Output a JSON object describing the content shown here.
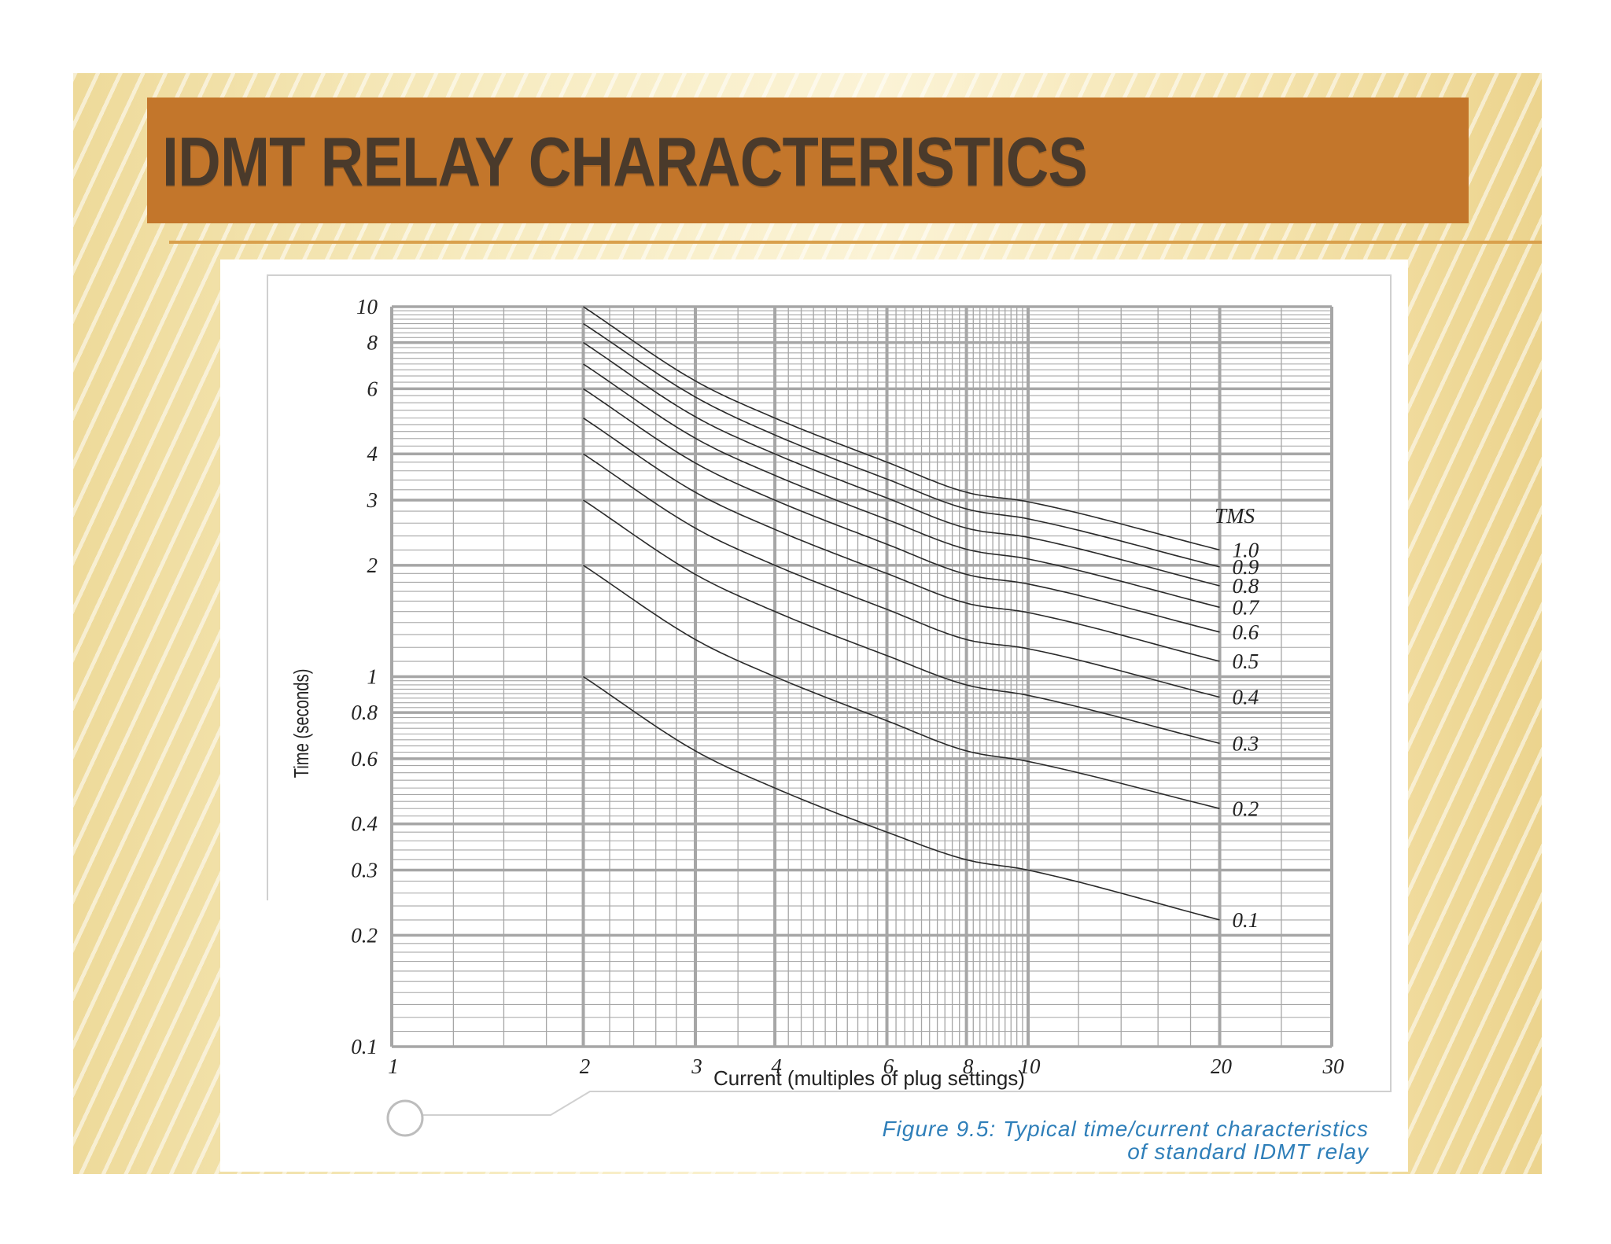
{
  "slide": {
    "title": "IDMT RELAY CHARACTERISTICS"
  },
  "colors": {
    "title_bar": "#c3762b",
    "title_text": "#4a3a2b",
    "caption": "#2f7fb9",
    "grid": "#a6a6a6",
    "curve": "#2a2a2a"
  },
  "caption": {
    "line1": "Figure 9.5:  Typical time/current characteristics",
    "line2": "of standard IDMT relay"
  },
  "chart_data": {
    "type": "line",
    "x_scale": "log",
    "y_scale": "log",
    "xlabel": "Current (multiples of plug settings)",
    "ylabel": "Time (seconds)",
    "xlim": [
      1,
      30
    ],
    "ylim": [
      0.1,
      10
    ],
    "x_ticks": [
      1,
      2,
      3,
      4,
      6,
      8,
      10,
      20,
      30
    ],
    "x_tick_labels": [
      "1",
      "2",
      "3",
      "4",
      "6",
      "8",
      "10",
      "20",
      "30"
    ],
    "y_ticks": [
      0.1,
      0.2,
      0.3,
      0.4,
      0.6,
      0.8,
      1,
      2,
      3,
      4,
      6,
      8,
      10
    ],
    "y_tick_labels": [
      "0.1",
      "0.2",
      "0.3",
      "0.4",
      "0.6",
      "0.8",
      "1",
      "2",
      "3",
      "4",
      "6",
      "8",
      "10"
    ],
    "legend_title": "TMS",
    "legend_placement": "right, at curve ends",
    "x": [
      2,
      3,
      4,
      6,
      8,
      10,
      20
    ],
    "series": [
      {
        "name": "1.0",
        "values": [
          10.0,
          6.3,
          5.0,
          3.8,
          3.15,
          2.97,
          2.2
        ]
      },
      {
        "name": "0.9",
        "values": [
          9.0,
          5.7,
          4.5,
          3.42,
          2.84,
          2.67,
          1.98
        ]
      },
      {
        "name": "0.8",
        "values": [
          8.0,
          5.04,
          4.0,
          3.04,
          2.52,
          2.38,
          1.76
        ]
      },
      {
        "name": "0.7",
        "values": [
          7.0,
          4.41,
          3.5,
          2.66,
          2.21,
          2.08,
          1.54
        ]
      },
      {
        "name": "0.6",
        "values": [
          6.0,
          3.78,
          3.0,
          2.28,
          1.89,
          1.78,
          1.32
        ]
      },
      {
        "name": "0.5",
        "values": [
          5.0,
          3.15,
          2.5,
          1.9,
          1.58,
          1.49,
          1.1
        ]
      },
      {
        "name": "0.4",
        "values": [
          4.0,
          2.52,
          2.0,
          1.52,
          1.26,
          1.19,
          0.88
        ]
      },
      {
        "name": "0.3",
        "values": [
          3.0,
          1.89,
          1.5,
          1.14,
          0.95,
          0.89,
          0.66
        ]
      },
      {
        "name": "0.2",
        "values": [
          2.0,
          1.26,
          1.0,
          0.76,
          0.63,
          0.59,
          0.44
        ]
      },
      {
        "name": "0.1",
        "values": [
          1.0,
          0.63,
          0.5,
          0.38,
          0.32,
          0.3,
          0.22
        ]
      }
    ]
  }
}
